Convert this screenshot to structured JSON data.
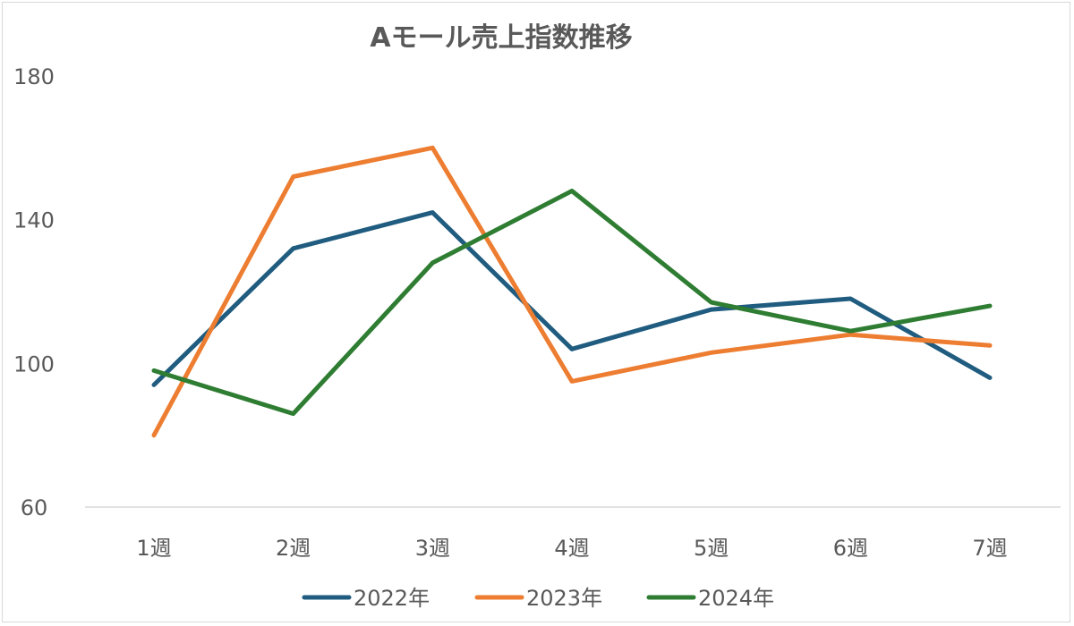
{
  "chart_data": {
    "type": "line",
    "title": "Aモール売上指数推移",
    "xlabel": "",
    "ylabel": "",
    "categories": [
      "1週",
      "2週",
      "3週",
      "4週",
      "5週",
      "6週",
      "7週"
    ],
    "ylim": [
      60,
      180
    ],
    "yticks": [
      60,
      100,
      140,
      180
    ],
    "grid": false,
    "legend_position": "bottom",
    "series": [
      {
        "name": "2022年",
        "color": "#1f5c7f",
        "values": [
          94,
          132,
          142,
          104,
          115,
          118,
          96
        ]
      },
      {
        "name": "2023年",
        "color": "#ed7d31",
        "values": [
          80,
          152,
          160,
          95,
          103,
          108,
          105
        ]
      },
      {
        "name": "2024年",
        "color": "#2e7d32",
        "values": [
          98,
          86,
          128,
          148,
          117,
          109,
          116
        ]
      }
    ]
  }
}
